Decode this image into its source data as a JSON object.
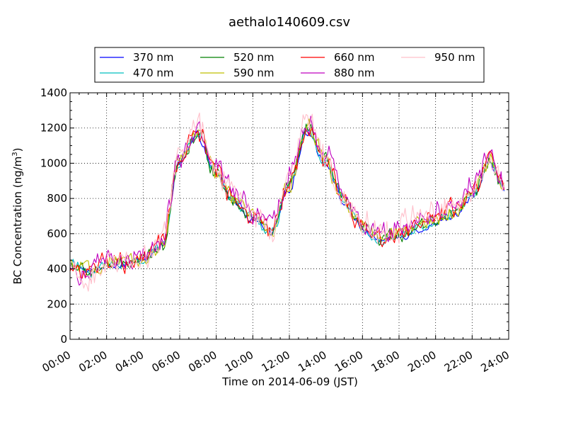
{
  "chart_data": {
    "type": "line",
    "title": "aethalo140609.csv",
    "xlabel": "Time on 2014-06-09 (JST)",
    "ylabel_main": "BC Concentration (ng/m",
    "ylabel_sup": "3",
    "ylabel_tail": ")",
    "xlim": [
      "00:00",
      "24:00"
    ],
    "ylim": [
      0,
      1400
    ],
    "x_ticks": [
      "00:00",
      "02:00",
      "04:00",
      "06:00",
      "08:00",
      "10:00",
      "12:00",
      "14:00",
      "16:00",
      "18:00",
      "20:00",
      "22:00",
      "24:00"
    ],
    "y_ticks": [
      "0",
      "200",
      "400",
      "600",
      "800",
      "1000",
      "1200",
      "1400"
    ],
    "grid": true,
    "legend_position": "top",
    "x_hours": [
      0,
      1,
      2,
      3,
      4,
      5,
      6,
      7,
      8,
      9,
      10,
      11,
      12,
      13,
      14,
      15,
      16,
      17,
      18,
      19,
      20,
      21,
      22,
      23,
      23.75
    ],
    "series": [
      {
        "name": "370 nm",
        "color": "#0000ff",
        "values": [
          440,
          380,
          420,
          430,
          450,
          520,
          1000,
          1150,
          930,
          780,
          680,
          600,
          860,
          1180,
          1000,
          770,
          620,
          560,
          580,
          620,
          660,
          700,
          800,
          1000,
          850
        ]
      },
      {
        "name": "470 nm",
        "color": "#00bfbf",
        "values": [
          430,
          385,
          425,
          430,
          455,
          525,
          1010,
          1160,
          935,
          785,
          685,
          605,
          870,
          1185,
          1005,
          775,
          625,
          565,
          585,
          630,
          670,
          710,
          810,
          1010,
          860
        ]
      },
      {
        "name": "520 nm",
        "color": "#008000",
        "values": [
          420,
          380,
          420,
          425,
          450,
          520,
          1020,
          1170,
          940,
          790,
          690,
          610,
          880,
          1190,
          1010,
          780,
          630,
          570,
          595,
          640,
          680,
          720,
          820,
          1020,
          860
        ]
      },
      {
        "name": "590 nm",
        "color": "#bfbf00",
        "values": [
          425,
          390,
          430,
          430,
          460,
          530,
          1020,
          1170,
          945,
          795,
          695,
          615,
          880,
          1195,
          1015,
          785,
          635,
          575,
          600,
          645,
          685,
          725,
          825,
          1025,
          865
        ]
      },
      {
        "name": "660 nm",
        "color": "#ff0000",
        "values": [
          410,
          380,
          440,
          430,
          460,
          540,
          1030,
          1180,
          950,
          800,
          700,
          620,
          890,
          1200,
          1020,
          790,
          640,
          580,
          610,
          650,
          700,
          730,
          830,
          1030,
          870
        ]
      },
      {
        "name": "880 nm",
        "color": "#bf00bf",
        "values": [
          400,
          370,
          450,
          440,
          470,
          550,
          1040,
          1200,
          970,
          830,
          720,
          640,
          920,
          1240,
          1040,
          810,
          660,
          600,
          630,
          680,
          730,
          760,
          850,
          1050,
          880
        ]
      },
      {
        "name": "950 nm",
        "color": "#ffc0cb",
        "values": [
          380,
          340,
          430,
          440,
          470,
          560,
          1050,
          1210,
          980,
          840,
          720,
          600,
          930,
          1250,
          1050,
          800,
          660,
          600,
          640,
          700,
          740,
          780,
          850,
          1050,
          870
        ]
      }
    ]
  }
}
